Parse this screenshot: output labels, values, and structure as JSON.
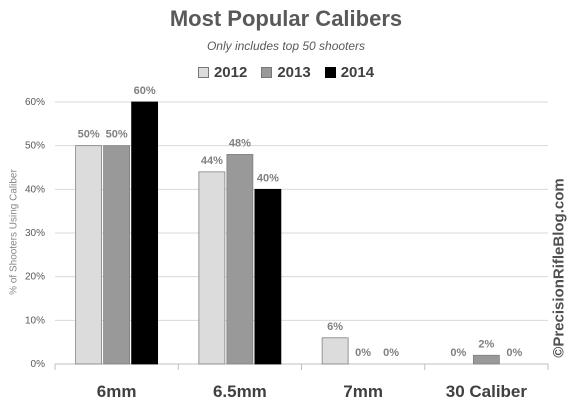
{
  "chart_data": {
    "type": "bar",
    "title": "Most Popular Calibers",
    "subtitle": "Only includes top 50 shooters",
    "ylabel": "% of Shooters Using Caliber",
    "xlabel": "",
    "ylim": [
      0,
      60
    ],
    "yticks": [
      "0%",
      "10%",
      "20%",
      "30%",
      "40%",
      "50%",
      "60%"
    ],
    "ytick_values": [
      0,
      10,
      20,
      30,
      40,
      50,
      60
    ],
    "grid": true,
    "legend_position": "top",
    "categories": [
      "6mm",
      "6.5mm",
      "7mm",
      "30 Caliber"
    ],
    "series": [
      {
        "name": "2012",
        "color": "#dcdcdc",
        "values": [
          50,
          44,
          6,
          0
        ],
        "labels": [
          "50%",
          "44%",
          "6%",
          "0%"
        ]
      },
      {
        "name": "2013",
        "color": "#999999",
        "values": [
          50,
          48,
          0,
          2
        ],
        "labels": [
          "50%",
          "48%",
          "0%",
          "2%"
        ]
      },
      {
        "name": "2014",
        "color": "#000000",
        "values": [
          60,
          40,
          0,
          0
        ],
        "labels": [
          "60%",
          "40%",
          "0%",
          "0%"
        ]
      }
    ]
  },
  "watermark": "©PrecisionRifleBlog.com"
}
